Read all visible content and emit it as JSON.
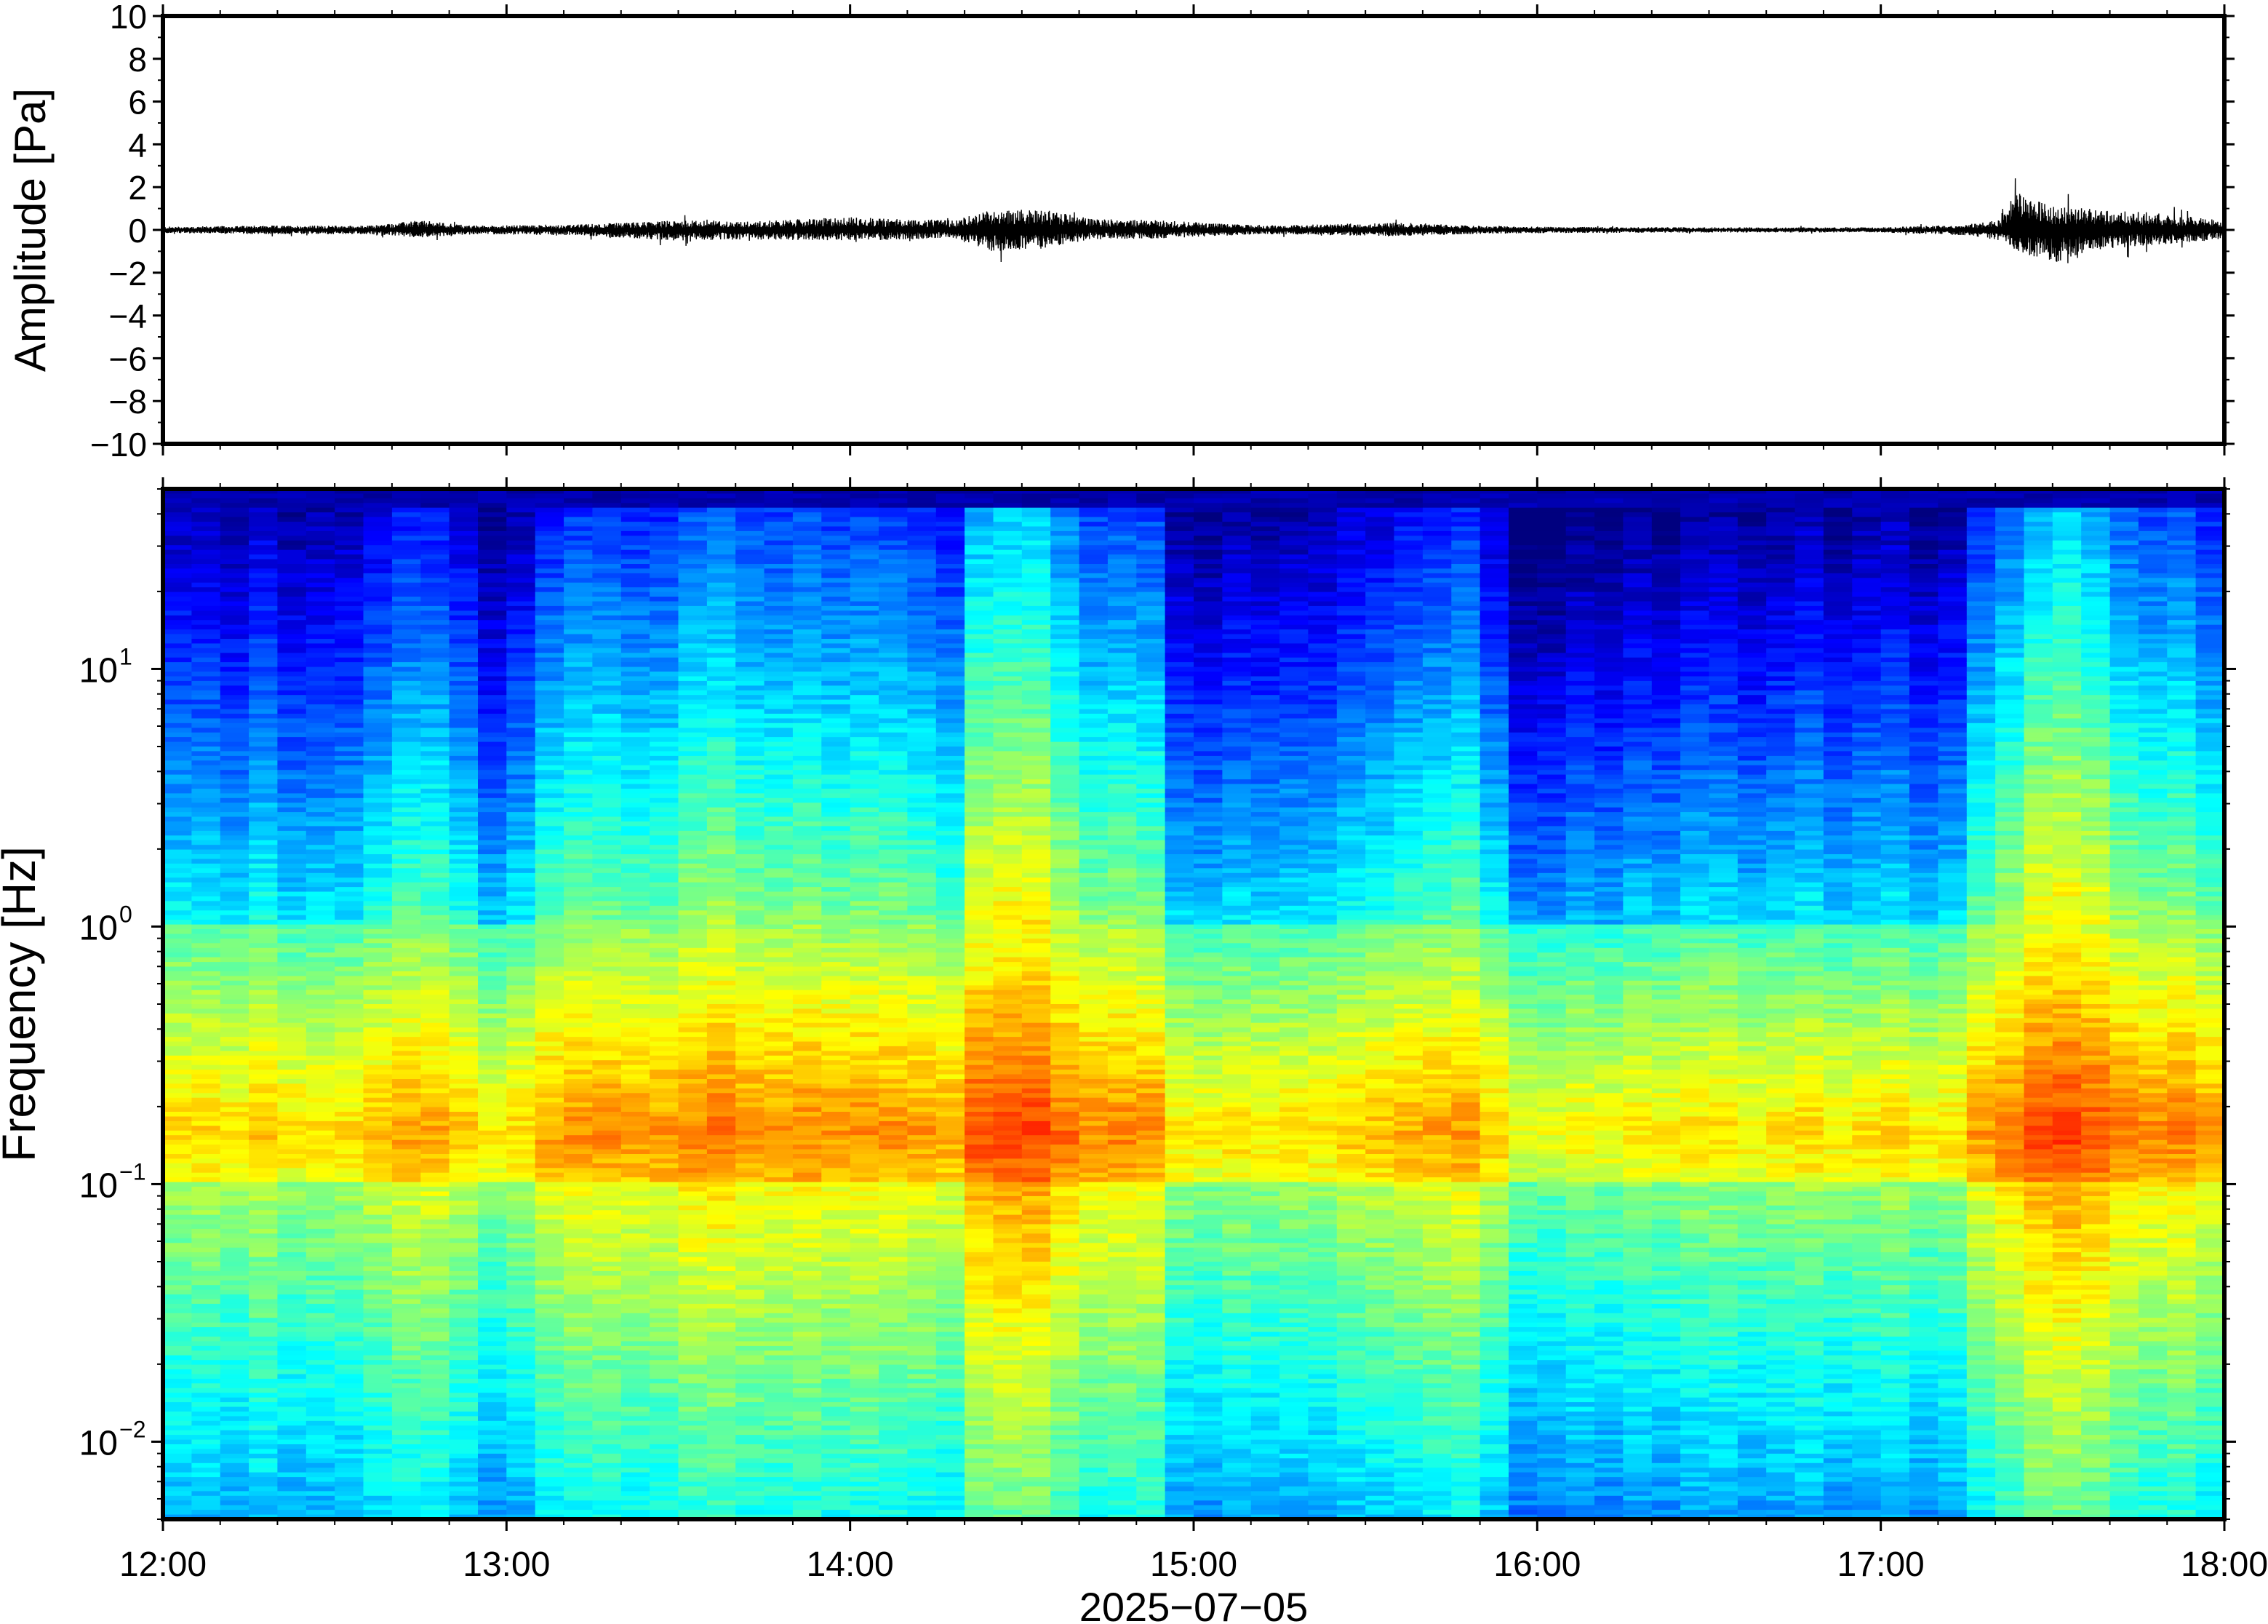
{
  "chart_data": [
    {
      "type": "line",
      "panel": "waveform",
      "ylabel": "Amplitude [Pa]",
      "ylim": [
        -10,
        10
      ],
      "yticks": [
        10,
        8,
        6,
        4,
        2,
        0,
        -2,
        -4,
        -6,
        -8,
        -10
      ],
      "ytick_labels": [
        "10",
        "8",
        "6",
        "4",
        "2",
        "0",
        "−2",
        "−4",
        "−6",
        "−8",
        "−10"
      ],
      "x_range_hours": [
        12,
        18
      ],
      "envelope": {
        "hours": [
          12.0,
          12.3,
          12.6,
          12.75,
          12.9,
          13.2,
          13.5,
          13.7,
          14.0,
          14.3,
          14.4,
          14.55,
          14.7,
          14.9,
          15.2,
          15.6,
          15.8,
          16.0,
          16.5,
          17.0,
          17.25,
          17.35,
          17.4,
          17.5,
          17.6,
          17.8,
          18.0
        ],
        "pos": [
          0.15,
          0.2,
          0.2,
          0.45,
          0.2,
          0.25,
          0.45,
          0.4,
          0.6,
          0.45,
          0.9,
          1.0,
          0.55,
          0.45,
          0.2,
          0.35,
          0.2,
          0.15,
          0.12,
          0.12,
          0.25,
          0.5,
          2.2,
          1.1,
          1.0,
          0.8,
          0.45
        ],
        "neg": [
          -0.15,
          -0.2,
          -0.2,
          -0.35,
          -0.2,
          -0.25,
          -0.5,
          -0.45,
          -0.5,
          -0.4,
          -1.0,
          -0.9,
          -0.45,
          -0.4,
          -0.2,
          -0.3,
          -0.2,
          -0.15,
          -0.12,
          -0.12,
          -0.25,
          -0.5,
          -1.0,
          -1.6,
          -1.0,
          -0.7,
          -0.45
        ]
      },
      "color": "#000000"
    },
    {
      "type": "heatmap",
      "panel": "spectrogram",
      "ylabel": "Frequency [Hz]",
      "yscale": "log",
      "ylim": [
        0.005,
        50
      ],
      "yticks": [
        0.01,
        0.1,
        1,
        10
      ],
      "ytick_labels": [
        {
          "base": "10",
          "exp": "−2"
        },
        {
          "base": "10",
          "exp": "−1"
        },
        {
          "base": "10",
          "exp": "0"
        },
        {
          "base": "10",
          "exp": "1"
        }
      ],
      "xlabel": "2025−07−05",
      "xticks": [
        "12:00",
        "13:00",
        "14:00",
        "15:00",
        "16:00",
        "17:00",
        "18:00"
      ],
      "colormap": "jet",
      "colormap_stops": [
        "#00007f",
        "#0000ff",
        "#007fff",
        "#00ffff",
        "#7fff7f",
        "#ffff00",
        "#ff7f00",
        "#ff0000",
        "#7f0000"
      ],
      "column_activity": {
        "hours": [
          12.0,
          12.3,
          12.55,
          12.7,
          12.85,
          12.95,
          13.15,
          13.5,
          13.75,
          14.0,
          14.3,
          14.4,
          14.5,
          14.7,
          14.85,
          14.95,
          15.3,
          15.55,
          15.85,
          15.95,
          16.3,
          16.6,
          17.0,
          17.2,
          17.35,
          17.5,
          17.7,
          18.0
        ],
        "level": [
          0.2,
          0.25,
          0.2,
          0.5,
          0.45,
          0.15,
          0.45,
          0.55,
          0.6,
          0.55,
          0.45,
          0.95,
          0.85,
          0.55,
          0.6,
          0.15,
          0.2,
          0.4,
          0.45,
          0.05,
          0.1,
          0.2,
          0.2,
          0.15,
          0.6,
          0.95,
          0.65,
          0.5
        ]
      }
    }
  ]
}
